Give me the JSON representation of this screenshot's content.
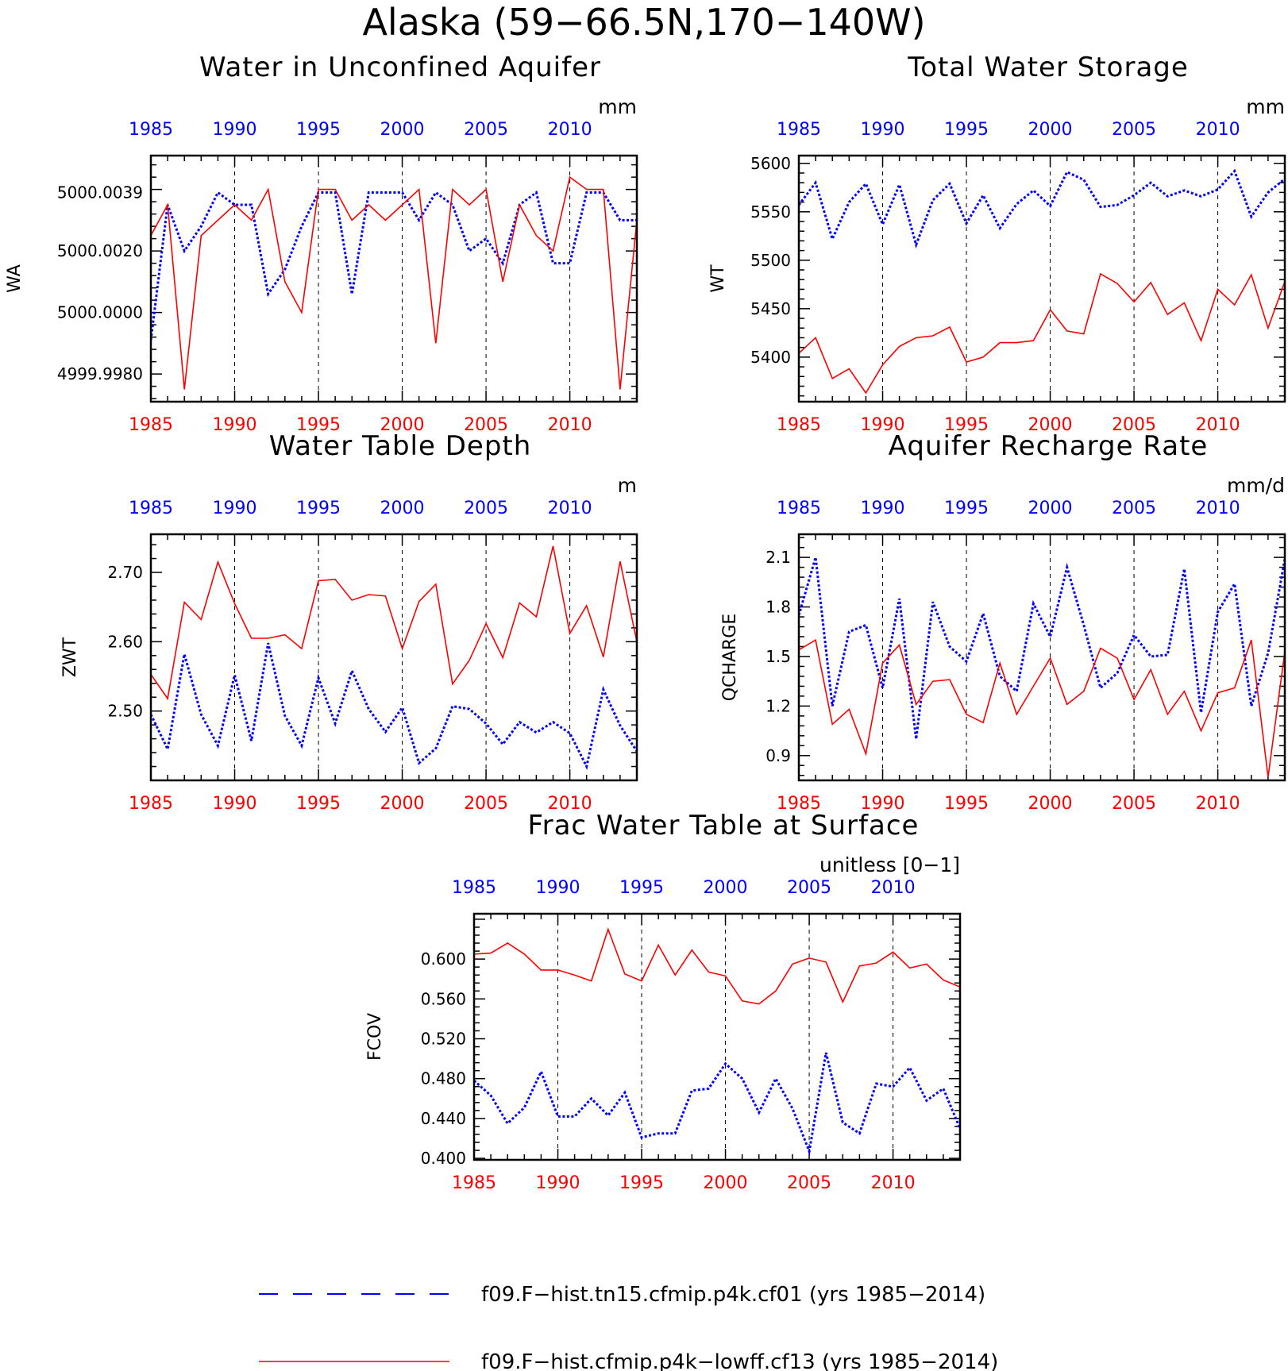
{
  "title": "Alaska (59−66.5N,170−140W)",
  "colors": {
    "cf01": "#0000ff",
    "cf13": "#ff0000",
    "axis": "#000000"
  },
  "legend": [
    {
      "key": "cf01",
      "label": "f09.F−hist.tn15.cfmip.p4k.cf01 (yrs 1985−2014)",
      "style": "dashed"
    },
    {
      "key": "cf13",
      "label": "f09.F−hist.cfmip.p4k−lowff.cf13 (yrs 1985−2014)",
      "style": "solid"
    }
  ],
  "chart_data": [
    {
      "id": "wa",
      "type": "line",
      "title": "Water in Unconfined Aquifer",
      "ylabel": "WA",
      "units": "mm",
      "xlim": [
        1985,
        2014
      ],
      "ylim": [
        4999.9971,
        5000.0051
      ],
      "yticks": [
        4999.998,
        5000.0,
        5000.002,
        5000.0039
      ],
      "ytick_labels": [
        "4999.9980",
        "5000.0000",
        "5000.0020",
        "5000.0039"
      ],
      "xticks": [
        1985,
        1990,
        1995,
        2000,
        2005,
        2010
      ],
      "x": [
        1985,
        1986,
        1987,
        1988,
        1989,
        1990,
        1991,
        1992,
        1993,
        1994,
        1995,
        1996,
        1997,
        1998,
        1999,
        2000,
        2001,
        2002,
        2003,
        2004,
        2005,
        2006,
        2007,
        2008,
        2009,
        2010,
        2011,
        2012,
        2013,
        2014
      ],
      "series": [
        {
          "key": "cf01",
          "values": [
            4999.9991,
            5000.0035,
            5000.002,
            5000.0028,
            5000.0039,
            5000.0035,
            5000.0035,
            5000.0006,
            5000.0014,
            5000.0028,
            5000.0039,
            5000.0039,
            5000.0006,
            5000.0039,
            5000.0039,
            5000.0039,
            5000.003,
            5000.0039,
            5000.0035,
            5000.002,
            5000.0024,
            5000.0016,
            5000.0035,
            5000.0039,
            5000.0016,
            5000.0016,
            5000.0039,
            5000.0039,
            5000.003,
            5000.003
          ]
        },
        {
          "key": "cf13",
          "values": [
            5000.0025,
            5000.0035,
            4999.9975,
            5000.0025,
            5000.003,
            5000.0035,
            5000.003,
            5000.004,
            5000.001,
            5000.0,
            5000.004,
            5000.004,
            5000.003,
            5000.0035,
            5000.003,
            5000.0035,
            5000.004,
            4999.999,
            5000.004,
            5000.0035,
            5000.004,
            5000.001,
            5000.0035,
            5000.0025,
            5000.002,
            5000.0044,
            5000.004,
            5000.004,
            4999.9975,
            5000.003
          ]
        }
      ]
    },
    {
      "id": "wt",
      "type": "line",
      "title": "Total Water Storage",
      "ylabel": "WT",
      "units": "mm",
      "xlim": [
        1985,
        2014
      ],
      "ylim": [
        5354,
        5608
      ],
      "yticks": [
        5400,
        5450,
        5500,
        5550,
        5600
      ],
      "ytick_labels": [
        "5400",
        "5450",
        "5500",
        "5550",
        "5600"
      ],
      "xticks": [
        1985,
        1990,
        1995,
        2000,
        2005,
        2010
      ],
      "x": [
        1985,
        1986,
        1987,
        1988,
        1989,
        1990,
        1991,
        1992,
        1993,
        1994,
        1995,
        1996,
        1997,
        1998,
        1999,
        2000,
        2001,
        2002,
        2003,
        2004,
        2005,
        2006,
        2007,
        2008,
        2009,
        2010,
        2011,
        2012,
        2013,
        2014
      ],
      "series": [
        {
          "key": "cf01",
          "values": [
            5557,
            5580,
            5522,
            5560,
            5579,
            5537,
            5578,
            5516,
            5562,
            5579,
            5538,
            5567,
            5533,
            5558,
            5572,
            5556,
            5591,
            5583,
            5555,
            5557,
            5567,
            5580,
            5566,
            5572,
            5566,
            5573,
            5592,
            5545,
            5570,
            5584
          ]
        },
        {
          "key": "cf13",
          "values": [
            5404,
            5420,
            5378,
            5388,
            5363,
            5392,
            5411,
            5420,
            5422,
            5431,
            5395,
            5400,
            5415,
            5415,
            5417,
            5449,
            5427,
            5424,
            5486,
            5476,
            5457,
            5477,
            5444,
            5456,
            5417,
            5470,
            5454,
            5485,
            5430,
            5478
          ]
        }
      ]
    },
    {
      "id": "zwt",
      "type": "line",
      "title": "Water Table Depth",
      "ylabel": "ZWT",
      "units": "m",
      "xlim": [
        1985,
        2014
      ],
      "ylim": [
        2.4,
        2.755
      ],
      "yticks": [
        2.5,
        2.6,
        2.7
      ],
      "ytick_labels": [
        "2.50",
        "2.60",
        "2.70"
      ],
      "xticks": [
        1985,
        1990,
        1995,
        2000,
        2005,
        2010
      ],
      "x": [
        1985,
        1986,
        1987,
        1988,
        1989,
        1990,
        1991,
        1992,
        1993,
        1994,
        1995,
        1996,
        1997,
        1998,
        1999,
        2000,
        2001,
        2002,
        2003,
        2004,
        2005,
        2006,
        2007,
        2008,
        2009,
        2010,
        2011,
        2012,
        2013,
        2014
      ],
      "series": [
        {
          "key": "cf01",
          "values": [
            2.495,
            2.445,
            2.582,
            2.495,
            2.45,
            2.552,
            2.457,
            2.598,
            2.493,
            2.45,
            2.548,
            2.482,
            2.558,
            2.503,
            2.47,
            2.505,
            2.425,
            2.446,
            2.507,
            2.503,
            2.482,
            2.452,
            2.484,
            2.469,
            2.484,
            2.468,
            2.42,
            2.531,
            2.479,
            2.442
          ]
        },
        {
          "key": "cf13",
          "values": [
            2.553,
            2.518,
            2.657,
            2.632,
            2.715,
            2.655,
            2.605,
            2.605,
            2.61,
            2.59,
            2.688,
            2.69,
            2.66,
            2.668,
            2.666,
            2.59,
            2.658,
            2.683,
            2.539,
            2.573,
            2.626,
            2.577,
            2.656,
            2.636,
            2.738,
            2.612,
            2.652,
            2.578,
            2.716,
            2.6
          ]
        }
      ]
    },
    {
      "id": "qcharge",
      "type": "line",
      "title": "Aquifer Recharge Rate",
      "ylabel": "QCHARGE",
      "units": "mm/d",
      "xlim": [
        1985,
        2014
      ],
      "ylim": [
        0.75,
        2.24
      ],
      "yticks": [
        0.9,
        1.2,
        1.5,
        1.8,
        2.1
      ],
      "ytick_labels": [
        "0.9",
        "1.2",
        "1.5",
        "1.8",
        "2.1"
      ],
      "xticks": [
        1985,
        1990,
        1995,
        2000,
        2005,
        2010
      ],
      "x": [
        1985,
        1986,
        1987,
        1988,
        1989,
        1990,
        1991,
        1992,
        1993,
        1994,
        1995,
        1996,
        1997,
        1998,
        1999,
        2000,
        2001,
        2002,
        2003,
        2004,
        2005,
        2006,
        2007,
        2008,
        2009,
        2010,
        2011,
        2012,
        2013,
        2014
      ],
      "series": [
        {
          "key": "cf01",
          "values": [
            1.75,
            2.1,
            1.2,
            1.65,
            1.69,
            1.31,
            1.85,
            1.0,
            1.83,
            1.56,
            1.47,
            1.76,
            1.38,
            1.29,
            1.82,
            1.62,
            2.04,
            1.69,
            1.31,
            1.4,
            1.63,
            1.5,
            1.51,
            2.03,
            1.16,
            1.77,
            1.94,
            1.2,
            1.52,
            2.09
          ]
        },
        {
          "key": "cf13",
          "values": [
            1.54,
            1.6,
            1.09,
            1.18,
            0.91,
            1.46,
            1.57,
            1.21,
            1.35,
            1.36,
            1.15,
            1.1,
            1.46,
            1.15,
            1.32,
            1.49,
            1.21,
            1.29,
            1.55,
            1.49,
            1.24,
            1.42,
            1.15,
            1.29,
            1.05,
            1.28,
            1.31,
            1.6,
            0.77,
            1.53
          ]
        }
      ]
    },
    {
      "id": "fcov",
      "type": "line",
      "title": "Frac Water Table at Surface",
      "ylabel": "FCOV",
      "units": "unitless [0−1]",
      "xlim": [
        1985,
        2014
      ],
      "ylim": [
        0.3985,
        0.6455
      ],
      "yticks": [
        0.4,
        0.44,
        0.48,
        0.52,
        0.56,
        0.6
      ],
      "ytick_labels": [
        "0.400",
        "0.440",
        "0.480",
        "0.520",
        "0.560",
        "0.600"
      ],
      "xticks": [
        1985,
        1990,
        1995,
        2000,
        2005,
        2010
      ],
      "x": [
        1985,
        1986,
        1987,
        1988,
        1989,
        1990,
        1991,
        1992,
        1993,
        1994,
        1995,
        1996,
        1997,
        1998,
        1999,
        2000,
        2001,
        2002,
        2003,
        2004,
        2005,
        2006,
        2007,
        2008,
        2009,
        2010,
        2011,
        2012,
        2013,
        2014
      ],
      "series": [
        {
          "key": "cf01",
          "values": [
            0.478,
            0.463,
            0.435,
            0.451,
            0.487,
            0.442,
            0.442,
            0.46,
            0.443,
            0.466,
            0.421,
            0.425,
            0.425,
            0.468,
            0.47,
            0.495,
            0.48,
            0.446,
            0.48,
            0.45,
            0.407,
            0.506,
            0.436,
            0.425,
            0.475,
            0.472,
            0.491,
            0.458,
            0.47,
            0.43
          ]
        },
        {
          "key": "cf13",
          "values": [
            0.605,
            0.606,
            0.616,
            0.605,
            0.589,
            0.589,
            0.584,
            0.578,
            0.63,
            0.585,
            0.578,
            0.614,
            0.584,
            0.609,
            0.587,
            0.583,
            0.558,
            0.555,
            0.568,
            0.595,
            0.601,
            0.597,
            0.557,
            0.593,
            0.596,
            0.607,
            0.591,
            0.595,
            0.579,
            0.572
          ]
        }
      ]
    }
  ]
}
